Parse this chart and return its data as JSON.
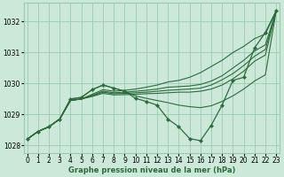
{
  "bg_color": "#cce8d8",
  "grid_color": "#99ccb3",
  "line_color": "#2d6b3c",
  "xlabel": "Graphe pression niveau de la mer (hPa)",
  "ylim": [
    1027.75,
    1032.6
  ],
  "xlim": [
    -0.3,
    23.3
  ],
  "yticks": [
    1028,
    1029,
    1030,
    1031,
    1032
  ],
  "xticks": [
    0,
    1,
    2,
    3,
    4,
    5,
    6,
    7,
    8,
    9,
    10,
    11,
    12,
    13,
    14,
    15,
    16,
    17,
    18,
    19,
    20,
    21,
    22,
    23
  ],
  "lines": [
    {
      "x": [
        0,
        1,
        2,
        3,
        4,
        5,
        6,
        7,
        8,
        9,
        10,
        11,
        12,
        13,
        14,
        15,
        16,
        17,
        18,
        19,
        20,
        21,
        22,
        23
      ],
      "y": [
        1028.2,
        1028.45,
        1028.6,
        1028.85,
        1029.45,
        1029.5,
        1029.65,
        1029.8,
        1029.75,
        1029.78,
        1029.82,
        1029.88,
        1029.95,
        1030.05,
        1030.1,
        1030.2,
        1030.35,
        1030.55,
        1030.75,
        1031.0,
        1031.2,
        1031.45,
        1031.6,
        1032.35
      ]
    },
    {
      "x": [
        0,
        1,
        2,
        3,
        4,
        5,
        6,
        7,
        8,
        9,
        10,
        11,
        12,
        13,
        14,
        15,
        16,
        17,
        18,
        19,
        20,
        21,
        22,
        23
      ],
      "y": [
        1028.2,
        1028.45,
        1028.6,
        1028.85,
        1029.45,
        1029.5,
        1029.62,
        1029.75,
        1029.7,
        1029.72,
        1029.75,
        1029.78,
        1029.82,
        1029.88,
        1029.9,
        1029.92,
        1029.97,
        1030.08,
        1030.25,
        1030.5,
        1030.75,
        1031.05,
        1031.25,
        1032.35
      ]
    },
    {
      "x": [
        0,
        1,
        2,
        3,
        4,
        5,
        6,
        7,
        8,
        9,
        10,
        11,
        12,
        13,
        14,
        15,
        16,
        17,
        18,
        19,
        20,
        21,
        22,
        23
      ],
      "y": [
        1028.2,
        1028.45,
        1028.6,
        1028.85,
        1029.45,
        1029.5,
        1029.6,
        1029.72,
        1029.67,
        1029.68,
        1029.7,
        1029.72,
        1029.75,
        1029.78,
        1029.8,
        1029.82,
        1029.85,
        1029.95,
        1030.12,
        1030.32,
        1030.58,
        1030.88,
        1031.1,
        1032.35
      ]
    },
    {
      "x": [
        0,
        1,
        2,
        3,
        4,
        5,
        6,
        7,
        8,
        9,
        10,
        11,
        12,
        13,
        14,
        15,
        16,
        17,
        18,
        19,
        20,
        21,
        22,
        23
      ],
      "y": [
        1028.2,
        1028.45,
        1028.6,
        1028.85,
        1029.45,
        1029.5,
        1029.58,
        1029.68,
        1029.63,
        1029.64,
        1029.65,
        1029.67,
        1029.68,
        1029.7,
        1029.72,
        1029.72,
        1029.75,
        1029.82,
        1029.95,
        1030.15,
        1030.4,
        1030.72,
        1030.92,
        1032.35
      ]
    },
    {
      "x": [
        0,
        1,
        2,
        3,
        4,
        5,
        6,
        7,
        8,
        9,
        10,
        11,
        12,
        13,
        14,
        15,
        16,
        17,
        18,
        19,
        20,
        21,
        22,
        23
      ],
      "y": [
        1028.2,
        1028.45,
        1028.6,
        1028.85,
        1029.5,
        1029.55,
        1029.8,
        1029.95,
        1029.85,
        1029.75,
        1029.6,
        1029.52,
        1029.45,
        1029.38,
        1029.3,
        1029.25,
        1029.22,
        1029.28,
        1029.42,
        1029.6,
        1029.82,
        1030.08,
        1030.28,
        1032.35
      ]
    }
  ],
  "marker_line": {
    "x": [
      0,
      1,
      2,
      3,
      4,
      5,
      6,
      7,
      8,
      9,
      10,
      11,
      12,
      13,
      14,
      15,
      16,
      17,
      18,
      19,
      20,
      21,
      22,
      23
    ],
    "y": [
      1028.2,
      1028.45,
      1028.6,
      1028.85,
      1029.5,
      1029.55,
      1029.8,
      1029.95,
      1029.85,
      1029.75,
      1029.52,
      1029.42,
      1029.3,
      1028.85,
      1028.6,
      1028.22,
      1028.15,
      1028.65,
      1029.3,
      1030.1,
      1030.2,
      1031.15,
      1031.65,
      1032.35
    ]
  }
}
